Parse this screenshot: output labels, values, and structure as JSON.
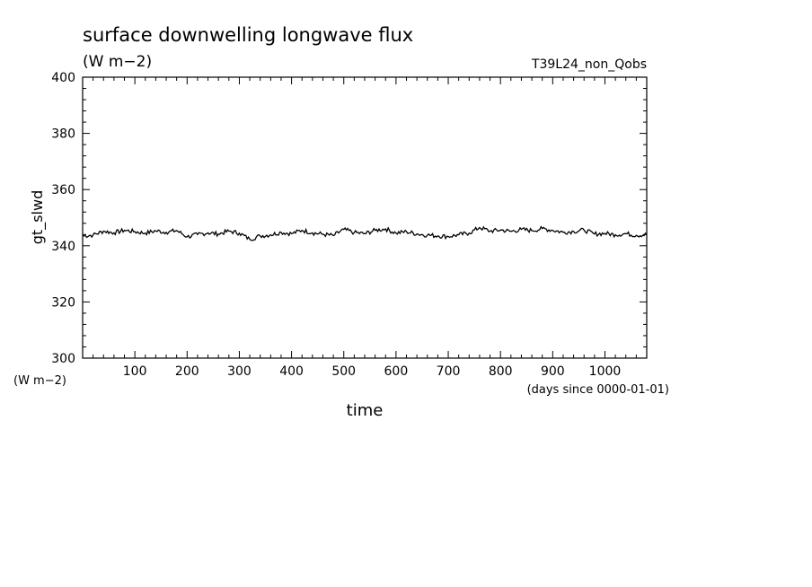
{
  "chart_data": {
    "type": "line",
    "title": "surface downwelling longwave flux",
    "units_label": "(W m−2)",
    "experiment": "T39L24_non_Qobs",
    "ylabel": "gt_slwd",
    "ylabel_units": "(W m−2)",
    "xlabel": "time",
    "xlabel_units": "(days since 0000-01-01)",
    "xlim": [
      0,
      1080
    ],
    "ylim": [
      300,
      400
    ],
    "x_ticks": [
      100,
      200,
      300,
      400,
      500,
      600,
      700,
      800,
      900,
      1000
    ],
    "y_ticks": [
      300,
      320,
      340,
      360,
      380,
      400
    ],
    "grid": false,
    "series": [
      {
        "x": [
          0,
          20,
          40,
          60,
          80,
          100,
          120,
          140,
          160,
          180,
          200,
          220,
          240,
          260,
          280,
          300,
          320,
          340,
          360,
          380,
          400,
          420,
          440,
          460,
          480,
          500,
          520,
          540,
          560,
          580,
          600,
          620,
          640,
          660,
          680,
          700,
          720,
          740,
          760,
          780,
          800,
          820,
          840,
          860,
          880,
          900,
          920,
          940,
          960,
          980,
          1000,
          1020,
          1040,
          1060,
          1080
        ],
        "values": [
          343.5,
          343.8,
          345.2,
          344.6,
          345.5,
          345.0,
          344.5,
          345.3,
          344.8,
          345.4,
          343.2,
          344.0,
          344.6,
          344.2,
          345.2,
          344.5,
          342.3,
          343.5,
          343.9,
          344.8,
          344.3,
          345.5,
          344.6,
          344.1,
          343.6,
          345.8,
          344.7,
          344.3,
          345.5,
          346.0,
          344.5,
          345.0,
          344.2,
          343.8,
          343.5,
          343.3,
          343.9,
          344.5,
          346.5,
          345.2,
          345.6,
          345.1,
          345.8,
          345.4,
          346.1,
          345.5,
          344.8,
          345.1,
          345.6,
          344.2,
          344.4,
          343.9,
          344.3,
          343.7,
          344.0
        ]
      }
    ]
  }
}
